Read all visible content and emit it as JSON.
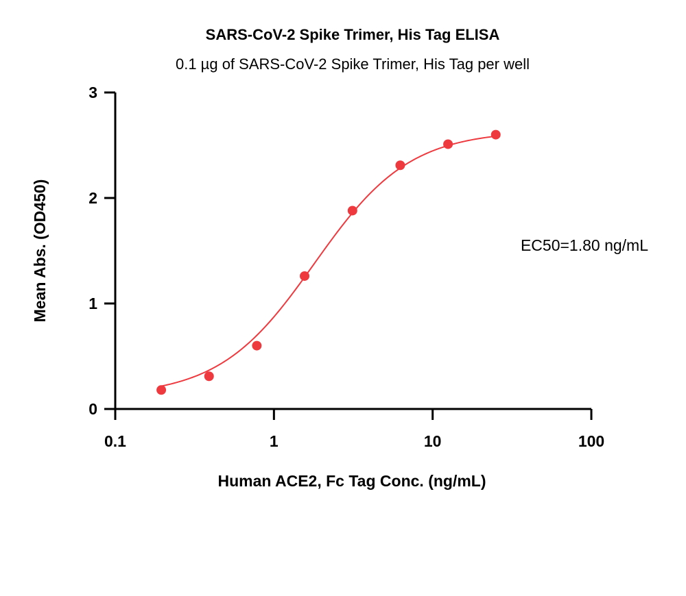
{
  "chart_data": {
    "type": "scatter",
    "title": "SARS-CoV-2 Spike Trimer, His Tag  ELISA",
    "subtitle": "0.1 µg of SARS-CoV-2 Spike Trimer, His Tag  per well",
    "xlabel": "Human ACE2, Fc Tag Conc. (ng/mL)",
    "ylabel": "Mean Abs. (OD450)",
    "x_scale": "log",
    "xlim": [
      0.1,
      100
    ],
    "ylim": [
      0,
      3
    ],
    "x_ticks": [
      0.1,
      1,
      10,
      100
    ],
    "x_tick_labels": [
      "0.1",
      "1",
      "10",
      "100"
    ],
    "y_ticks": [
      0,
      1,
      2,
      3
    ],
    "y_tick_labels": [
      "0",
      "1",
      "2",
      "3"
    ],
    "grid": false,
    "series": [
      {
        "color": "#ee3a3f",
        "x": [
          0.195,
          0.39,
          0.78,
          1.56,
          3.125,
          6.25,
          12.5,
          25
        ],
        "y": [
          0.18,
          0.31,
          0.6,
          1.26,
          1.88,
          2.31,
          2.51,
          2.6
        ],
        "fit": "4PL",
        "fit_params": {
          "bottom": 0.12,
          "top": 2.64,
          "ec50": 1.8,
          "hill": 1.45
        }
      }
    ],
    "annotations": [
      "EC50=1.80 ng/mL"
    ]
  }
}
